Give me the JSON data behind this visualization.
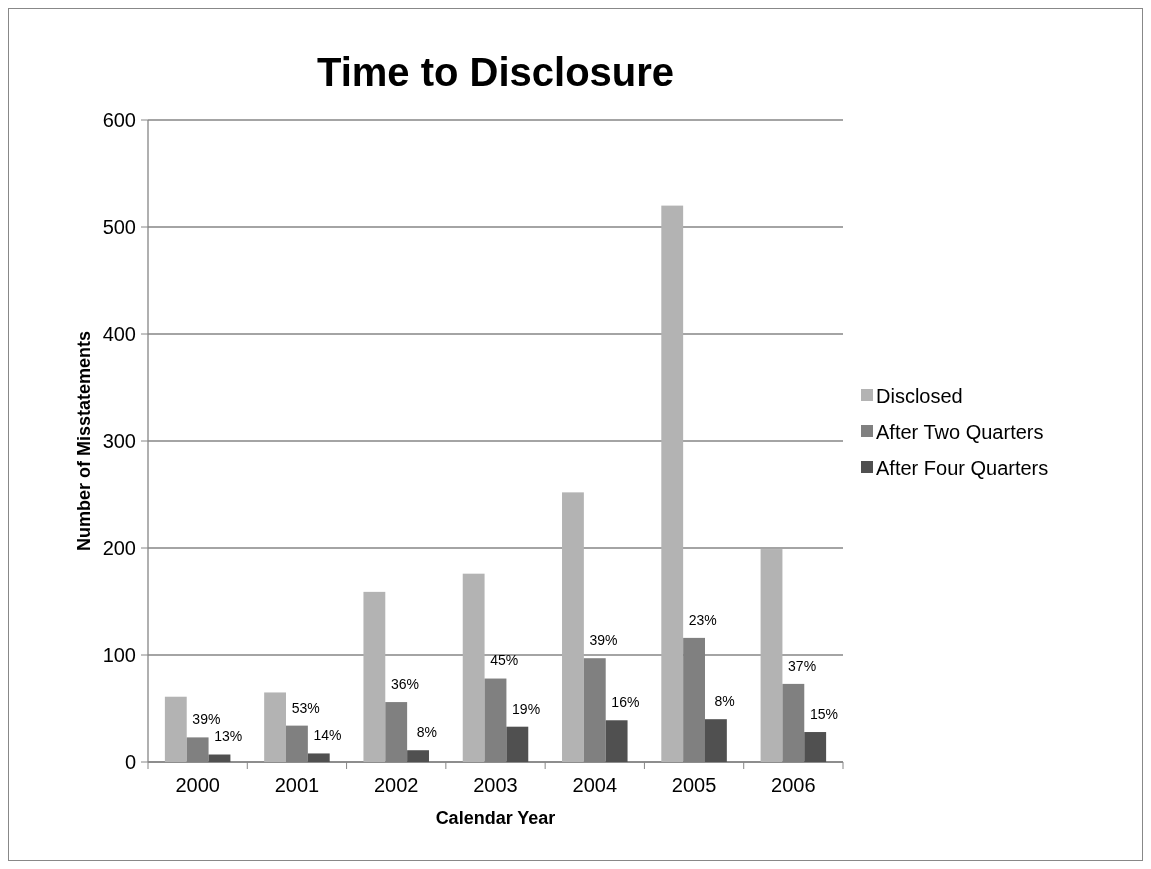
{
  "chart_data": {
    "type": "bar",
    "title": "Time to Disclosure",
    "xlabel": "Calendar Year",
    "ylabel": "Number of Misstatements",
    "categories": [
      "2000",
      "2001",
      "2002",
      "2003",
      "2004",
      "2005",
      "2006"
    ],
    "series": [
      {
        "name": "Disclosed",
        "color": "#b3b3b3",
        "values": [
          61,
          65,
          159,
          176,
          252,
          520,
          199
        ]
      },
      {
        "name": "After Two Quarters",
        "color": "#808080",
        "values": [
          23,
          34,
          56,
          78,
          97,
          116,
          73
        ]
      },
      {
        "name": "After Four Quarters",
        "color": "#505050",
        "values": [
          7,
          8,
          11,
          33,
          39,
          40,
          28
        ]
      }
    ],
    "annotations": [
      "39%",
      "13%",
      "53%",
      "14%",
      "36%",
      "8%",
      "45%",
      "19%",
      "39%",
      "16%",
      "23%",
      "8%",
      "37%",
      "15%"
    ],
    "ylim": [
      0,
      600
    ],
    "yticks": [
      0,
      100,
      200,
      300,
      400,
      500,
      600
    ],
    "grid": "y",
    "legend": "right"
  }
}
